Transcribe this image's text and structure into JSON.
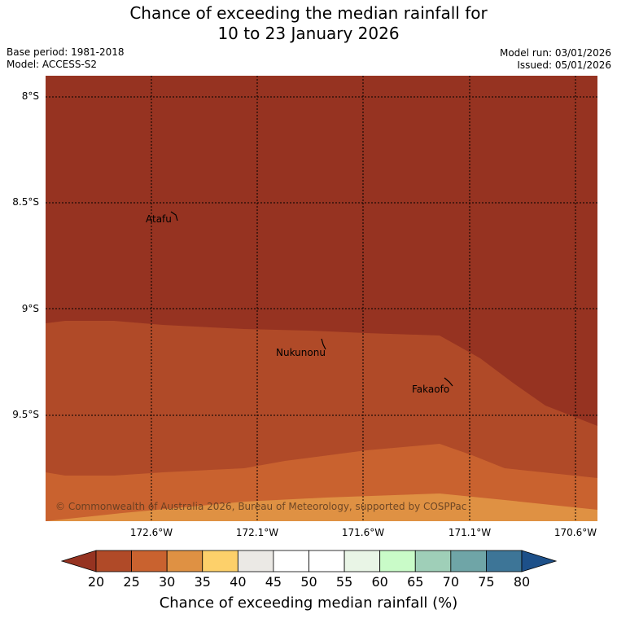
{
  "title": {
    "line1": "Chance of exceeding the median rainfall for",
    "line2": "10 to 23 January 2026"
  },
  "info": {
    "base_period": "Base period: 1981-2018",
    "model": "Model: ACCESS-S2",
    "model_run": "Model run: 03/01/2026",
    "issued": "Issued: 05/01/2026"
  },
  "map": {
    "lat_labels": [
      "8°S",
      "8.5°S",
      "9°S",
      "9.5°S"
    ],
    "lon_labels": [
      "172.6°W",
      "172.1°W",
      "171.6°W",
      "171.1°W",
      "170.6°W"
    ],
    "places": [
      "Atafu",
      "Nukunonu",
      "Fakaofo"
    ],
    "copyright": "© Commonwealth of Australia 2026, Bureau of Meteorology, supported by COSPPac"
  },
  "colorbar": {
    "ticks": [
      "20",
      "25",
      "30",
      "35",
      "40",
      "45",
      "50",
      "55",
      "60",
      "65",
      "70",
      "75",
      "80"
    ],
    "colors": [
      "#b04a28",
      "#c9622f",
      "#df9143",
      "#fdd06a",
      "#ebe9e5",
      "#ffffff",
      "#ffffff",
      "#e9f5e6",
      "#c9fbc8",
      "#9fcfb8",
      "#6fa5a7",
      "#3d7597"
    ],
    "under_color": "#963321",
    "over_color": "#1d5089",
    "label": "Chance of exceeding median rainfall (%)"
  }
}
